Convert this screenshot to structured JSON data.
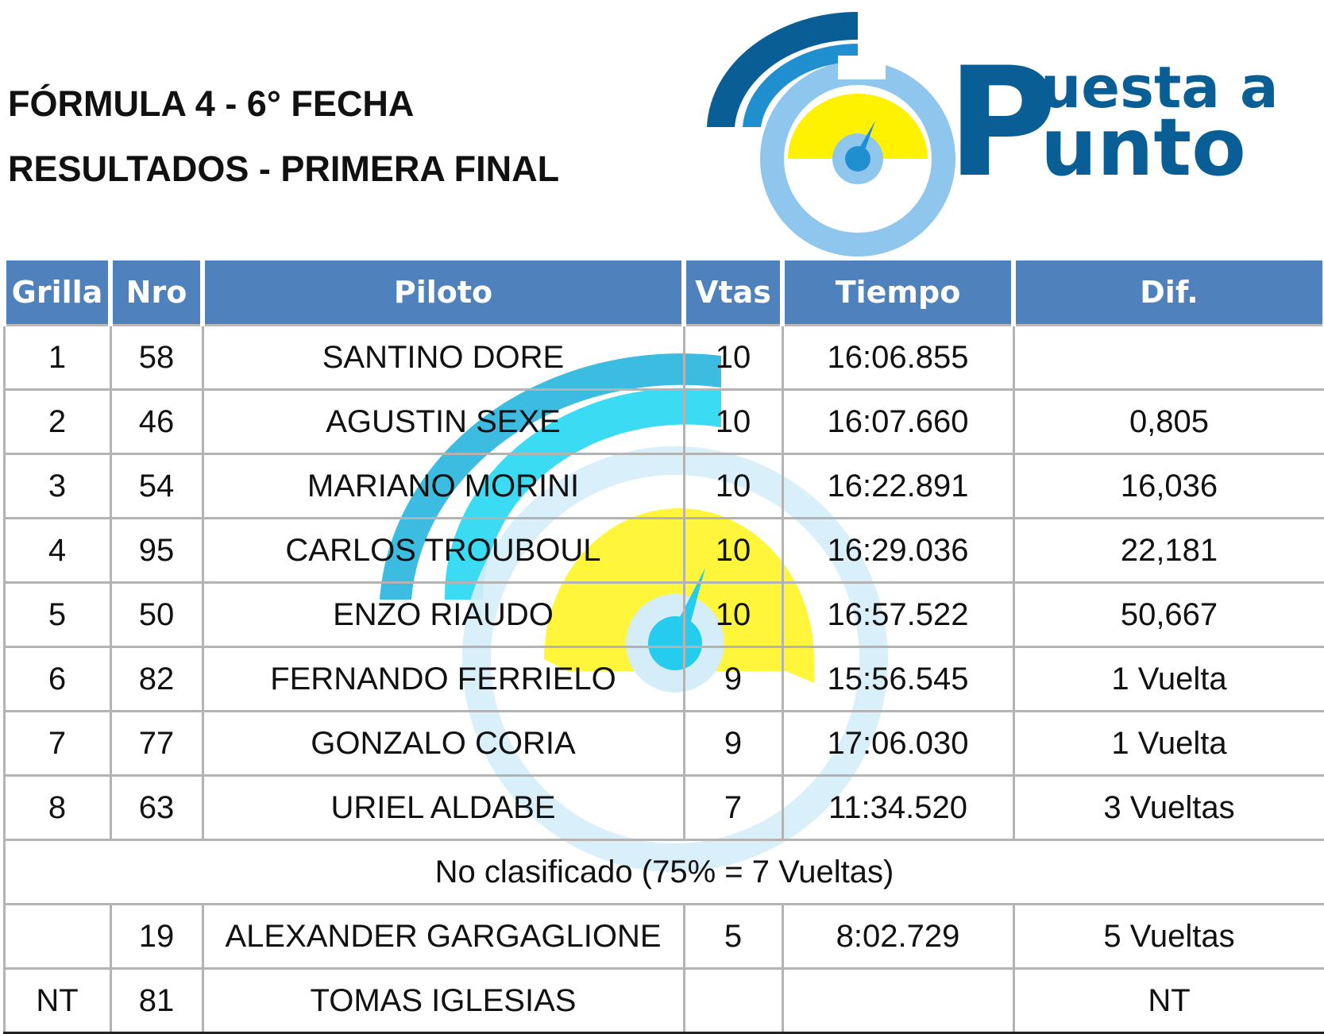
{
  "header": {
    "title_line1": "FÓRMULA 4 - 6° FECHA",
    "title_line2": "RESULTADOS - PRIMERA FINAL"
  },
  "logo": {
    "text_top": "uesta a",
    "text_bottom": "unto",
    "letter": "P",
    "colors": {
      "dark_blue": "#0a5e96",
      "mid_blue": "#1f8fd0",
      "light_blue": "#8fc6ee",
      "yellow": "#fff200"
    }
  },
  "table": {
    "columns": [
      "Grilla",
      "Nro",
      "Piloto",
      "Vtas",
      "Tiempo",
      "Dif."
    ],
    "rows": [
      {
        "grilla": "1",
        "nro": "58",
        "piloto": "SANTINO DORE",
        "vtas": "10",
        "tiempo": "16:06.855",
        "dif": ""
      },
      {
        "grilla": "2",
        "nro": "46",
        "piloto": "AGUSTIN SEXE",
        "vtas": "10",
        "tiempo": "16:07.660",
        "dif": "0,805"
      },
      {
        "grilla": "3",
        "nro": "54",
        "piloto": "MARIANO MORINI",
        "vtas": "10",
        "tiempo": "16:22.891",
        "dif": "16,036"
      },
      {
        "grilla": "4",
        "nro": "95",
        "piloto": "CARLOS TROUBOUL",
        "vtas": "10",
        "tiempo": "16:29.036",
        "dif": "22,181"
      },
      {
        "grilla": "5",
        "nro": "50",
        "piloto": "ENZO RIAUDO",
        "vtas": "10",
        "tiempo": "16:57.522",
        "dif": "50,667"
      },
      {
        "grilla": "6",
        "nro": "82",
        "piloto": "FERNANDO FERRIELO",
        "vtas": "9",
        "tiempo": "15:56.545",
        "dif": "1 Vuelta"
      },
      {
        "grilla": "7",
        "nro": "77",
        "piloto": "GONZALO CORIA",
        "vtas": "9",
        "tiempo": "17:06.030",
        "dif": "1 Vuelta"
      },
      {
        "grilla": "8",
        "nro": "63",
        "piloto": "URIEL ALDABE",
        "vtas": "7",
        "tiempo": "11:34.520",
        "dif": "3 Vueltas"
      }
    ],
    "not_classified_note": "No clasificado (75% = 7 Vueltas)",
    "extra_rows": [
      {
        "grilla": "",
        "nro": "19",
        "piloto": "ALEXANDER GARGAGLIONE",
        "vtas": "5",
        "tiempo": "8:02.729",
        "dif": "5 Vueltas"
      },
      {
        "grilla": "NT",
        "nro": "81",
        "piloto": "TOMAS IGLESIAS",
        "vtas": "",
        "tiempo": "",
        "dif": "NT"
      }
    ]
  }
}
